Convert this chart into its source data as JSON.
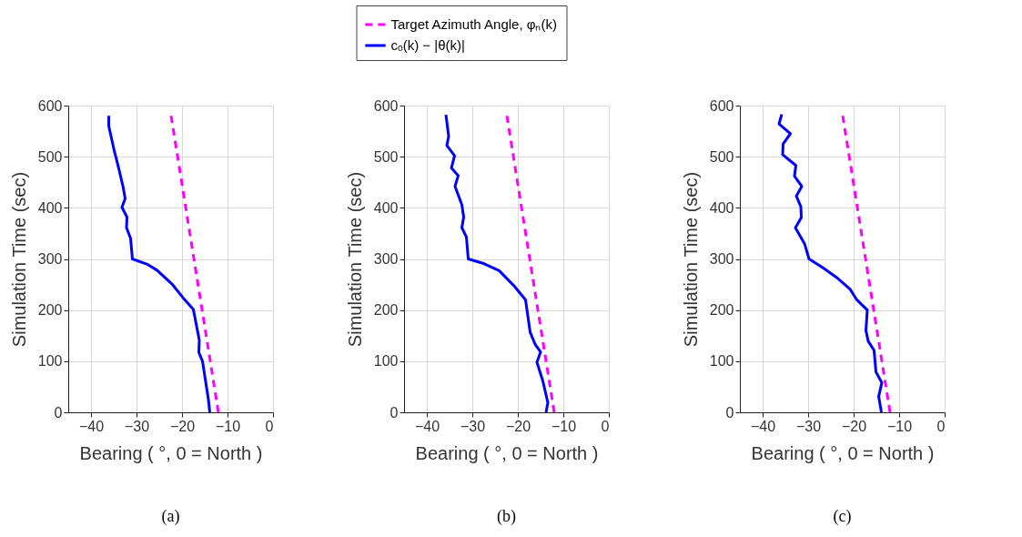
{
  "chart_data": [
    {
      "type": "line",
      "xlabel": "Bearing ( °, 0 = North )",
      "ylabel": "Simulation Time (sec)",
      "xlim": [
        -45,
        0
      ],
      "xticks": [
        -40,
        -30,
        -20,
        -10,
        0
      ],
      "ylim": [
        0,
        600
      ],
      "yticks": [
        0,
        100,
        200,
        300,
        400,
        500,
        600
      ],
      "grid": true,
      "annotations": [
        "(a)"
      ],
      "series": [
        {
          "color": "#ff00ff",
          "line_style": "dashed",
          "x": [
            -12.0,
            -22.4
          ],
          "values": [
            0,
            580
          ]
        },
        {
          "color": "#0000ff",
          "line_style": "solid",
          "x": [
            -13.9,
            -14.2,
            -15.5,
            -16.3,
            -16.2,
            -17.5,
            -19.5,
            -22.2,
            -25.5,
            -27.5,
            -30.9,
            -31.3,
            -32.2,
            -32.1,
            -33.2,
            -32.5,
            -32.9,
            -33.9,
            -34.9,
            -36.1,
            -36.1
          ],
          "values": [
            0,
            25,
            100,
            117,
            141,
            201,
            221,
            251,
            278,
            289,
            300,
            340,
            361,
            382,
            401,
            418,
            439,
            477,
            512,
            560,
            580
          ]
        }
      ]
    },
    {
      "type": "line",
      "xlabel": "Bearing ( °, 0 = North )",
      "ylabel": "Simulation Time (sec)",
      "xlim": [
        -45,
        0
      ],
      "xticks": [
        -40,
        -30,
        -20,
        -10,
        0
      ],
      "ylim": [
        0,
        600
      ],
      "yticks": [
        0,
        100,
        200,
        300,
        400,
        500,
        600
      ],
      "grid": true,
      "legend": "top",
      "annotations": [
        "(b)"
      ],
      "series": [
        {
          "name": "Target Azimuth Angle, φₙ(k)",
          "color": "#ff00ff",
          "line_style": "dashed",
          "x": [
            -12.0,
            -22.4
          ],
          "values": [
            0,
            580
          ]
        },
        {
          "name": "cₒ(k) − |θ(k)|",
          "color": "#0000ff",
          "line_style": "solid",
          "x": [
            -13.8,
            -13.4,
            -14.5,
            -15.8,
            -15.0,
            -16.2,
            -17.3,
            -18.3,
            -20.8,
            -24.1,
            -27.5,
            -30.9,
            -31.3,
            -32.3,
            -31.9,
            -32.3,
            -33.8,
            -33.1,
            -34.6,
            -33.9,
            -35.6,
            -35.2,
            -35.8
          ],
          "values": [
            0,
            19,
            61,
            98,
            118,
            133,
            157,
            220,
            247,
            277,
            291,
            300,
            343,
            361,
            382,
            406,
            442,
            463,
            478,
            502,
            522,
            540,
            582
          ]
        }
      ]
    },
    {
      "type": "line",
      "xlabel": "Bearing ( °, 0 = North )",
      "ylabel": "Simulation Time (sec)",
      "xlim": [
        -45,
        0
      ],
      "xticks": [
        -40,
        -30,
        -20,
        -10,
        0
      ],
      "ylim": [
        0,
        600
      ],
      "yticks": [
        0,
        100,
        200,
        300,
        400,
        500,
        600
      ],
      "grid": true,
      "annotations": [
        "(c)"
      ],
      "series": [
        {
          "color": "#ff00ff",
          "line_style": "dashed",
          "x": [
            -12.0,
            -22.4
          ],
          "values": [
            0,
            580
          ]
        },
        {
          "color": "#0000ff",
          "line_style": "solid",
          "x": [
            -13.9,
            -14.5,
            -13.8,
            -15.1,
            -15.5,
            -16.8,
            -17.3,
            -17.0,
            -19.3,
            -20.8,
            -23.5,
            -26.8,
            -29.8,
            -30.8,
            -32.8,
            -31.5,
            -31.6,
            -32.6,
            -31.4,
            -33.0,
            -32.7,
            -35.6,
            -35.5,
            -33.9,
            -36.4,
            -35.8
          ],
          "values": [
            0,
            31,
            58,
            79,
            121,
            139,
            160,
            200,
            220,
            241,
            262,
            283,
            300,
            330,
            361,
            381,
            402,
            423,
            442,
            462,
            483,
            504,
            525,
            545,
            564,
            583
          ]
        }
      ]
    }
  ]
}
